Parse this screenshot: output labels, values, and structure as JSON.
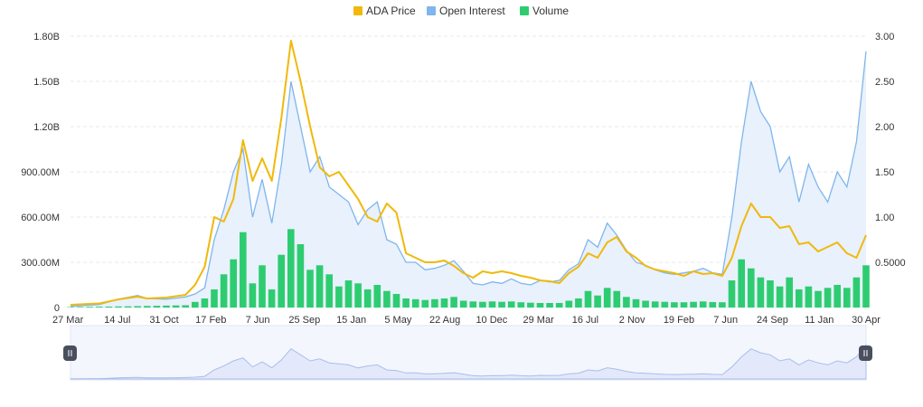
{
  "colors": {
    "price": "#F0B90B",
    "open_interest": "#7FB6EC",
    "open_interest_fill": "#E8F1FC",
    "volume": "#2ECC71",
    "grid": "#E9E9E9",
    "axis_text": "#333333",
    "navigator_fill": "#E3E9FA",
    "navigator_line": "#A9BEEB",
    "handle": "#4A4F5E"
  },
  "legend": [
    {
      "label": "ADA Price",
      "key": "price",
      "icon": "square-swatch"
    },
    {
      "label": "Open Interest",
      "key": "open_interest",
      "icon": "square-swatch"
    },
    {
      "label": "Volume",
      "key": "volume",
      "icon": "square-swatch"
    }
  ],
  "chart_data": {
    "type": "line",
    "title": "",
    "x_labels": [
      "27 Mar",
      "14 Jul",
      "31 Oct",
      "17 Feb",
      "7 Jun",
      "25 Sep",
      "15 Jan",
      "5 May",
      "22 Aug",
      "10 Dec",
      "29 Mar",
      "16 Jul",
      "2 Nov",
      "19 Feb",
      "7 Jun",
      "24 Sep",
      "11 Jan",
      "30 Apr"
    ],
    "left_axis": {
      "ticks": [
        "0",
        "300.00M",
        "600.00M",
        "900.00M",
        "1.20B",
        "1.50B",
        "1.80B"
      ],
      "range": [
        0,
        1800000000
      ]
    },
    "right_axis": {
      "ticks": [
        "0.5000",
        "1.00",
        "1.50",
        "2.00",
        "2.50",
        "3.00"
      ],
      "range": [
        0,
        3.0
      ]
    },
    "grid": true,
    "legend_position": "top-center",
    "series": [
      {
        "name": "ADA Price",
        "axis": "right",
        "type": "line",
        "points": [
          [
            0,
            0.03
          ],
          [
            3,
            0.045
          ],
          [
            5,
            0.09
          ],
          [
            7,
            0.12
          ],
          [
            8,
            0.1
          ],
          [
            10,
            0.11
          ],
          [
            12,
            0.14
          ],
          [
            13,
            0.25
          ],
          [
            14,
            0.45
          ],
          [
            15,
            1.0
          ],
          [
            16,
            0.95
          ],
          [
            17,
            1.2
          ],
          [
            18,
            1.85
          ],
          [
            19,
            1.4
          ],
          [
            20,
            1.65
          ],
          [
            21,
            1.4
          ],
          [
            22,
            2.1
          ],
          [
            23,
            2.95
          ],
          [
            24,
            2.5
          ],
          [
            25,
            2.0
          ],
          [
            26,
            1.55
          ],
          [
            27,
            1.45
          ],
          [
            28,
            1.5
          ],
          [
            29,
            1.35
          ],
          [
            30,
            1.2
          ],
          [
            31,
            1.0
          ],
          [
            32,
            0.95
          ],
          [
            33,
            1.15
          ],
          [
            34,
            1.05
          ],
          [
            35,
            0.6
          ],
          [
            36,
            0.55
          ],
          [
            37,
            0.5
          ],
          [
            38,
            0.5
          ],
          [
            39,
            0.52
          ],
          [
            40,
            0.46
          ],
          [
            41,
            0.38
          ],
          [
            42,
            0.33
          ],
          [
            43,
            0.4
          ],
          [
            44,
            0.38
          ],
          [
            45,
            0.4
          ],
          [
            46,
            0.38
          ],
          [
            47,
            0.35
          ],
          [
            48,
            0.33
          ],
          [
            49,
            0.3
          ],
          [
            50,
            0.29
          ],
          [
            51,
            0.27
          ],
          [
            52,
            0.38
          ],
          [
            53,
            0.45
          ],
          [
            54,
            0.6
          ],
          [
            55,
            0.55
          ],
          [
            56,
            0.72
          ],
          [
            57,
            0.78
          ],
          [
            58,
            0.62
          ],
          [
            59,
            0.55
          ],
          [
            60,
            0.46
          ],
          [
            61,
            0.42
          ],
          [
            62,
            0.4
          ],
          [
            63,
            0.38
          ],
          [
            64,
            0.35
          ],
          [
            65,
            0.4
          ],
          [
            66,
            0.37
          ],
          [
            67,
            0.38
          ],
          [
            68,
            0.35
          ],
          [
            69,
            0.55
          ],
          [
            70,
            0.9
          ],
          [
            71,
            1.15
          ],
          [
            72,
            1.0
          ],
          [
            73,
            1.0
          ],
          [
            74,
            0.88
          ],
          [
            75,
            0.9
          ],
          [
            76,
            0.7
          ],
          [
            77,
            0.72
          ],
          [
            78,
            0.62
          ],
          [
            79,
            0.67
          ],
          [
            80,
            0.72
          ],
          [
            81,
            0.6
          ],
          [
            82,
            0.55
          ],
          [
            83,
            0.8
          ]
        ]
      },
      {
        "name": "Open Interest",
        "axis": "left",
        "type": "area",
        "points": [
          [
            0,
            8000000
          ],
          [
            3,
            20000000
          ],
          [
            5,
            55000000
          ],
          [
            7,
            80000000
          ],
          [
            8,
            60000000
          ],
          [
            10,
            55000000
          ],
          [
            12,
            70000000
          ],
          [
            13,
            90000000
          ],
          [
            14,
            130000000
          ],
          [
            15,
            450000000
          ],
          [
            16,
            650000000
          ],
          [
            17,
            900000000
          ],
          [
            18,
            1050000000
          ],
          [
            19,
            600000000
          ],
          [
            20,
            850000000
          ],
          [
            21,
            560000000
          ],
          [
            22,
            950000000
          ],
          [
            23,
            1500000000
          ],
          [
            24,
            1200000000
          ],
          [
            25,
            900000000
          ],
          [
            26,
            1000000000
          ],
          [
            27,
            800000000
          ],
          [
            28,
            750000000
          ],
          [
            29,
            700000000
          ],
          [
            30,
            550000000
          ],
          [
            31,
            650000000
          ],
          [
            32,
            700000000
          ],
          [
            33,
            450000000
          ],
          [
            34,
            420000000
          ],
          [
            35,
            300000000
          ],
          [
            36,
            300000000
          ],
          [
            37,
            250000000
          ],
          [
            38,
            260000000
          ],
          [
            39,
            280000000
          ],
          [
            40,
            310000000
          ],
          [
            41,
            240000000
          ],
          [
            42,
            160000000
          ],
          [
            43,
            150000000
          ],
          [
            44,
            170000000
          ],
          [
            45,
            160000000
          ],
          [
            46,
            190000000
          ],
          [
            47,
            160000000
          ],
          [
            48,
            150000000
          ],
          [
            49,
            180000000
          ],
          [
            50,
            170000000
          ],
          [
            51,
            180000000
          ],
          [
            52,
            250000000
          ],
          [
            53,
            290000000
          ],
          [
            54,
            450000000
          ],
          [
            55,
            400000000
          ],
          [
            56,
            560000000
          ],
          [
            57,
            480000000
          ],
          [
            58,
            380000000
          ],
          [
            59,
            300000000
          ],
          [
            60,
            280000000
          ],
          [
            61,
            250000000
          ],
          [
            62,
            230000000
          ],
          [
            63,
            220000000
          ],
          [
            64,
            230000000
          ],
          [
            65,
            240000000
          ],
          [
            66,
            260000000
          ],
          [
            67,
            230000000
          ],
          [
            68,
            220000000
          ],
          [
            69,
            600000000
          ],
          [
            70,
            1100000000
          ],
          [
            71,
            1500000000
          ],
          [
            72,
            1300000000
          ],
          [
            73,
            1200000000
          ],
          [
            74,
            900000000
          ],
          [
            75,
            1000000000
          ],
          [
            76,
            700000000
          ],
          [
            77,
            950000000
          ],
          [
            78,
            800000000
          ],
          [
            79,
            700000000
          ],
          [
            80,
            900000000
          ],
          [
            81,
            800000000
          ],
          [
            82,
            1100000000
          ],
          [
            83,
            1700000000
          ]
        ]
      },
      {
        "name": "Volume",
        "axis": "left",
        "type": "bar",
        "points": [
          [
            0,
            3000000
          ],
          [
            4,
            6000000
          ],
          [
            8,
            10000000
          ],
          [
            12,
            15000000
          ],
          [
            14,
            60000000
          ],
          [
            15,
            120000000
          ],
          [
            16,
            220000000
          ],
          [
            17,
            320000000
          ],
          [
            18,
            500000000
          ],
          [
            19,
            160000000
          ],
          [
            20,
            280000000
          ],
          [
            21,
            120000000
          ],
          [
            22,
            350000000
          ],
          [
            23,
            520000000
          ],
          [
            24,
            420000000
          ],
          [
            25,
            250000000
          ],
          [
            26,
            280000000
          ],
          [
            27,
            220000000
          ],
          [
            28,
            140000000
          ],
          [
            29,
            180000000
          ],
          [
            30,
            160000000
          ],
          [
            31,
            120000000
          ],
          [
            32,
            150000000
          ],
          [
            33,
            110000000
          ],
          [
            34,
            90000000
          ],
          [
            35,
            60000000
          ],
          [
            36,
            55000000
          ],
          [
            37,
            50000000
          ],
          [
            38,
            55000000
          ],
          [
            39,
            60000000
          ],
          [
            40,
            70000000
          ],
          [
            41,
            45000000
          ],
          [
            42,
            40000000
          ],
          [
            43,
            38000000
          ],
          [
            44,
            40000000
          ],
          [
            45,
            38000000
          ],
          [
            46,
            40000000
          ],
          [
            47,
            35000000
          ],
          [
            48,
            32000000
          ],
          [
            49,
            30000000
          ],
          [
            50,
            30000000
          ],
          [
            51,
            30000000
          ],
          [
            52,
            45000000
          ],
          [
            53,
            60000000
          ],
          [
            54,
            110000000
          ],
          [
            55,
            80000000
          ],
          [
            56,
            130000000
          ],
          [
            57,
            110000000
          ],
          [
            58,
            70000000
          ],
          [
            59,
            55000000
          ],
          [
            60,
            45000000
          ],
          [
            61,
            40000000
          ],
          [
            62,
            38000000
          ],
          [
            63,
            35000000
          ],
          [
            64,
            35000000
          ],
          [
            65,
            38000000
          ],
          [
            66,
            40000000
          ],
          [
            67,
            36000000
          ],
          [
            68,
            35000000
          ],
          [
            69,
            180000000
          ],
          [
            70,
            320000000
          ],
          [
            71,
            260000000
          ],
          [
            72,
            200000000
          ],
          [
            73,
            180000000
          ],
          [
            74,
            140000000
          ],
          [
            75,
            200000000
          ],
          [
            76,
            120000000
          ],
          [
            77,
            140000000
          ],
          [
            78,
            110000000
          ],
          [
            79,
            130000000
          ],
          [
            80,
            150000000
          ],
          [
            81,
            130000000
          ],
          [
            82,
            200000000
          ],
          [
            83,
            280000000
          ]
        ]
      }
    ]
  }
}
